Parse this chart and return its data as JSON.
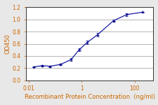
{
  "x_data": [
    0.016,
    0.032,
    0.064,
    0.16,
    0.4,
    0.8,
    1.6,
    4,
    16,
    50,
    200
  ],
  "y_data": [
    0.22,
    0.24,
    0.23,
    0.26,
    0.34,
    0.5,
    0.62,
    0.75,
    0.98,
    1.08,
    1.12
  ],
  "y_err": [
    0.01,
    0.01,
    0.01,
    0.01,
    0.02,
    0.02,
    0.03,
    0.03,
    0.02,
    0.02,
    0.01
  ],
  "line_color": "#1a1aaa",
  "marker_color": "#000080",
  "xlabel": "Recombinant Protein Concentration  (ng/ml)",
  "ylabel": "OD450",
  "xlim": [
    0.008,
    500
  ],
  "ylim": [
    0.0,
    1.2
  ],
  "yticks": [
    0.0,
    0.2,
    0.4,
    0.6,
    0.8,
    1.0,
    1.2
  ],
  "xticks": [
    0.01,
    1,
    100
  ],
  "xtick_labels": [
    "0.01",
    "1",
    "100"
  ],
  "bg_color": "#ffffff",
  "fig_bg_color": "#e8e8e8",
  "xlabel_color": "#cc6600",
  "ylabel_color": "#cc6600",
  "tick_color": "#cc6600",
  "grid_color": "#aaaaaa",
  "spine_color": "#333333",
  "axis_fontsize": 6.0,
  "tick_fontsize": 5.5
}
